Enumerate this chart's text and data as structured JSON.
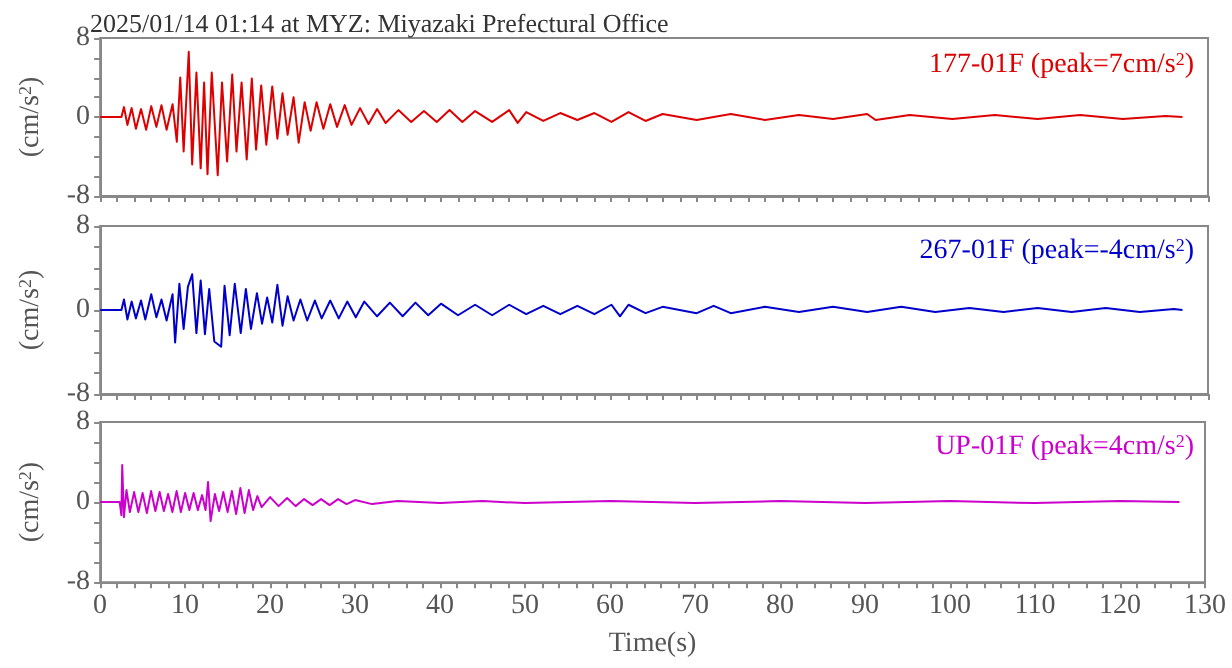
{
  "chart_data": [
    {
      "type": "line",
      "title": "2025/01/14 01:14 at MYZ: Miyazaki Prefectural Office",
      "ylabel": "(cm/s$^{2}$)",
      "tick_labels": "y",
      "legend": false,
      "marker": "none",
      "line_style": "solid",
      "grid": false,
      "xlim": [
        0,
        130
      ],
      "xticks": [
        0,
        {
          "value": 2,
          "label": null
        },
        {
          "value": 4,
          "label": null
        },
        {
          "value": 6,
          "label": null
        },
        {
          "value": 8,
          "label": null
        },
        10,
        {
          "value": 12,
          "label": null
        },
        {
          "value": 14,
          "label": null
        },
        {
          "value": 16,
          "label": null
        },
        {
          "value": 18,
          "label": null
        },
        20,
        {
          "value": 22,
          "label": null
        },
        {
          "value": 24,
          "label": null
        },
        {
          "value": 26,
          "label": null
        },
        {
          "value": 28,
          "label": null
        },
        30,
        {
          "value": 32,
          "label": null
        },
        {
          "value": 34,
          "label": null
        },
        {
          "value": 36,
          "label": null
        },
        {
          "value": 38,
          "label": null
        },
        40,
        {
          "value": 42,
          "label": null
        },
        {
          "value": 44,
          "label": null
        },
        {
          "value": 46,
          "label": null
        },
        {
          "value": 48,
          "label": null
        },
        50,
        {
          "value": 52,
          "label": null
        },
        {
          "value": 54,
          "label": null
        },
        {
          "value": 56,
          "label": null
        },
        {
          "value": 58,
          "label": null
        },
        60,
        {
          "value": 62,
          "label": null
        },
        {
          "value": 64,
          "label": null
        },
        {
          "value": 66,
          "label": null
        },
        {
          "value": 68,
          "label": null
        },
        70,
        {
          "value": 72,
          "label": null
        },
        {
          "value": 74,
          "label": null
        },
        {
          "value": 76,
          "label": null
        },
        {
          "value": 78,
          "label": null
        },
        80,
        {
          "value": 82,
          "label": null
        },
        {
          "value": 84,
          "label": null
        },
        {
          "value": 86,
          "label": null
        },
        {
          "value": 88,
          "label": null
        },
        90,
        {
          "value": 92,
          "label": null
        },
        {
          "value": 94,
          "label": null
        },
        {
          "value": 96,
          "label": null
        },
        {
          "value": 98,
          "label": null
        },
        100,
        {
          "value": 102,
          "label": null
        },
        {
          "value": 104,
          "label": null
        },
        {
          "value": 106,
          "label": null
        },
        {
          "value": 108,
          "label": null
        },
        110,
        {
          "value": 112,
          "label": null
        },
        {
          "value": 114,
          "label": null
        },
        {
          "value": 116,
          "label": null
        },
        {
          "value": 118,
          "label": null
        },
        120,
        {
          "value": 122,
          "label": null
        },
        {
          "value": 124,
          "label": null
        },
        {
          "value": 126,
          "label": null
        },
        {
          "value": 128,
          "label": null
        },
        130
      ],
      "ylim": [
        -8,
        8
      ],
      "yticks": [
        -8,
        {
          "value": -6,
          "label": null
        },
        {
          "value": -4,
          "label": null
        },
        {
          "value": -2,
          "label": null
        },
        0,
        {
          "value": 2,
          "label": null
        },
        {
          "value": 4,
          "label": null
        },
        {
          "value": 6,
          "label": null
        },
        8
      ],
      "series": [
        {
          "name": "177-01F (peak=7cm/s$^{2}$)",
          "color": "#dd0000",
          "x": [
            0,
            2.5,
            2.8,
            3.2,
            3.7,
            4.2,
            4.8,
            5.4,
            6,
            6.6,
            7.2,
            7.8,
            8.5,
            9.0,
            9.4,
            9.8,
            10.4,
            10.8,
            11.3,
            11.8,
            12.2,
            12.6,
            13.1,
            13.8,
            14.3,
            14.9,
            15.5,
            16,
            16.6,
            17.2,
            17.8,
            18.3,
            18.9,
            19.5,
            20.2,
            20.8,
            21.4,
            22,
            22.7,
            23.3,
            24,
            24.7,
            25.4,
            26.2,
            27,
            27.8,
            28.7,
            29.5,
            30.5,
            31.5,
            32.5,
            33.5,
            35,
            36.5,
            38,
            39.5,
            41,
            42.5,
            44,
            46,
            48,
            49,
            50,
            52,
            54,
            56,
            58,
            60,
            62,
            64,
            66,
            70,
            74,
            78,
            82,
            86,
            90,
            91,
            95,
            100,
            105,
            110,
            115,
            120,
            125,
            127
          ],
          "values": [
            0,
            0,
            1,
            -0.8,
            0.9,
            -1.2,
            0.8,
            -1.3,
            1.1,
            -1,
            1.2,
            -1.3,
            1.3,
            -2.5,
            4,
            -3.5,
            6.6,
            -4.8,
            4.5,
            -5.2,
            3.5,
            -5.8,
            4.5,
            -5.9,
            3.5,
            -4.5,
            4.3,
            -3.5,
            3.5,
            -4.3,
            3.9,
            -3.3,
            3.2,
            -2.8,
            3.1,
            -2.2,
            2.4,
            -1.8,
            2,
            -2.6,
            1.5,
            -1.4,
            1.5,
            -1.2,
            1.3,
            -1,
            1.2,
            -0.8,
            0.9,
            -0.7,
            0.8,
            -0.6,
            0.7,
            -0.5,
            0.6,
            -0.5,
            0.7,
            -0.5,
            0.6,
            -0.5,
            0.7,
            -0.6,
            0.5,
            -0.4,
            0.4,
            -0.3,
            0.4,
            -0.5,
            0.5,
            -0.4,
            0.3,
            -0.3,
            0.3,
            -0.3,
            0.2,
            -0.2,
            0.3,
            -0.3,
            0.2,
            -0.2,
            0.2,
            -0.2,
            0.2,
            -0.2,
            0.1,
            0
          ]
        }
      ]
    },
    {
      "type": "line",
      "ylabel": "(cm/s$^{2}$)",
      "tick_labels": "y",
      "legend": false,
      "marker": "none",
      "line_style": "solid",
      "grid": false,
      "xlim": [
        0,
        130
      ],
      "xticks": [
        0,
        {
          "value": 2,
          "label": null
        },
        {
          "value": 4,
          "label": null
        },
        {
          "value": 6,
          "label": null
        },
        {
          "value": 8,
          "label": null
        },
        10,
        {
          "value": 12,
          "label": null
        },
        {
          "value": 14,
          "label": null
        },
        {
          "value": 16,
          "label": null
        },
        {
          "value": 18,
          "label": null
        },
        20,
        {
          "value": 22,
          "label": null
        },
        {
          "value": 24,
          "label": null
        },
        {
          "value": 26,
          "label": null
        },
        {
          "value": 28,
          "label": null
        },
        30,
        {
          "value": 32,
          "label": null
        },
        {
          "value": 34,
          "label": null
        },
        {
          "value": 36,
          "label": null
        },
        {
          "value": 38,
          "label": null
        },
        40,
        {
          "value": 42,
          "label": null
        },
        {
          "value": 44,
          "label": null
        },
        {
          "value": 46,
          "label": null
        },
        {
          "value": 48,
          "label": null
        },
        50,
        {
          "value": 52,
          "label": null
        },
        {
          "value": 54,
          "label": null
        },
        {
          "value": 56,
          "label": null
        },
        {
          "value": 58,
          "label": null
        },
        60,
        {
          "value": 62,
          "label": null
        },
        {
          "value": 64,
          "label": null
        },
        {
          "value": 66,
          "label": null
        },
        {
          "value": 68,
          "label": null
        },
        70,
        {
          "value": 72,
          "label": null
        },
        {
          "value": 74,
          "label": null
        },
        {
          "value": 76,
          "label": null
        },
        {
          "value": 78,
          "label": null
        },
        80,
        {
          "value": 82,
          "label": null
        },
        {
          "value": 84,
          "label": null
        },
        {
          "value": 86,
          "label": null
        },
        {
          "value": 88,
          "label": null
        },
        90,
        {
          "value": 92,
          "label": null
        },
        {
          "value": 94,
          "label": null
        },
        {
          "value": 96,
          "label": null
        },
        {
          "value": 98,
          "label": null
        },
        100,
        {
          "value": 102,
          "label": null
        },
        {
          "value": 104,
          "label": null
        },
        {
          "value": 106,
          "label": null
        },
        {
          "value": 108,
          "label": null
        },
        110,
        {
          "value": 112,
          "label": null
        },
        {
          "value": 114,
          "label": null
        },
        {
          "value": 116,
          "label": null
        },
        {
          "value": 118,
          "label": null
        },
        120,
        {
          "value": 122,
          "label": null
        },
        {
          "value": 124,
          "label": null
        },
        {
          "value": 126,
          "label": null
        },
        {
          "value": 128,
          "label": null
        },
        130
      ],
      "ylim": [
        -8,
        8
      ],
      "yticks": [
        -8,
        {
          "value": -6,
          "label": null
        },
        {
          "value": -4,
          "label": null
        },
        {
          "value": -2,
          "label": null
        },
        0,
        {
          "value": 2,
          "label": null
        },
        {
          "value": 4,
          "label": null
        },
        {
          "value": 6,
          "label": null
        },
        8
      ],
      "series": [
        {
          "name": "267-01F (peak=-4cm/s$^{2}$)",
          "color": "#0000cc",
          "x": [
            0,
            2.5,
            2.8,
            3.2,
            3.7,
            4.2,
            4.8,
            5.3,
            6,
            6.6,
            7.2,
            7.8,
            8.5,
            8.8,
            9.3,
            9.8,
            10.3,
            10.8,
            11.3,
            11.8,
            12.3,
            12.8,
            13.4,
            14.2,
            14.6,
            15.2,
            15.8,
            16.5,
            17.1,
            17.7,
            18.4,
            19,
            19.6,
            20.2,
            20.8,
            21.4,
            22,
            22.7,
            23.5,
            24.3,
            25.2,
            26,
            27,
            28,
            29,
            30,
            31,
            32.5,
            34,
            35.5,
            37,
            38.5,
            40,
            42,
            44,
            46,
            48,
            50,
            52,
            54,
            56,
            58,
            60,
            61,
            62,
            64,
            66,
            70,
            72,
            74,
            78,
            82,
            86,
            90,
            94,
            98,
            102,
            106,
            110,
            114,
            118,
            122,
            126,
            127
          ],
          "values": [
            0,
            0,
            1,
            -0.9,
            0.8,
            -0.8,
            0.9,
            -0.9,
            1.5,
            -0.7,
            1,
            -1,
            1.5,
            -3.1,
            2.5,
            -1.8,
            2.2,
            3.4,
            -2.2,
            2.8,
            -2.3,
            2,
            -3,
            -3.5,
            2.3,
            -2.4,
            2.5,
            -2.2,
            2,
            -1.8,
            1.6,
            -1.3,
            1.2,
            -1.2,
            2.4,
            -1.5,
            1.3,
            -1,
            1,
            -1,
            0.9,
            -0.8,
            0.9,
            -0.8,
            0.8,
            -0.7,
            0.8,
            -0.6,
            0.7,
            -0.6,
            0.7,
            -0.5,
            0.6,
            -0.5,
            0.5,
            -0.5,
            0.5,
            -0.4,
            0.4,
            -0.4,
            0.4,
            -0.4,
            0.5,
            -0.6,
            0.5,
            -0.3,
            0.3,
            -0.3,
            0.4,
            -0.3,
            0.3,
            -0.2,
            0.3,
            -0.2,
            0.3,
            -0.2,
            0.2,
            -0.2,
            0.2,
            -0.2,
            0.2,
            -0.2,
            0.1,
            0
          ]
        }
      ]
    },
    {
      "type": "line",
      "ylabel": "(cm/s$^{2}$)",
      "xlabel": "Time(s)",
      "legend": false,
      "marker": "none",
      "line_style": "solid",
      "grid": false,
      "xlim": [
        0,
        130
      ],
      "xticks": [
        0,
        {
          "value": 2,
          "label": null
        },
        {
          "value": 4,
          "label": null
        },
        {
          "value": 6,
          "label": null
        },
        {
          "value": 8,
          "label": null
        },
        10,
        {
          "value": 12,
          "label": null
        },
        {
          "value": 14,
          "label": null
        },
        {
          "value": 16,
          "label": null
        },
        {
          "value": 18,
          "label": null
        },
        20,
        {
          "value": 22,
          "label": null
        },
        {
          "value": 24,
          "label": null
        },
        {
          "value": 26,
          "label": null
        },
        {
          "value": 28,
          "label": null
        },
        30,
        {
          "value": 32,
          "label": null
        },
        {
          "value": 34,
          "label": null
        },
        {
          "value": 36,
          "label": null
        },
        {
          "value": 38,
          "label": null
        },
        40,
        {
          "value": 42,
          "label": null
        },
        {
          "value": 44,
          "label": null
        },
        {
          "value": 46,
          "label": null
        },
        {
          "value": 48,
          "label": null
        },
        50,
        {
          "value": 52,
          "label": null
        },
        {
          "value": 54,
          "label": null
        },
        {
          "value": 56,
          "label": null
        },
        {
          "value": 58,
          "label": null
        },
        60,
        {
          "value": 62,
          "label": null
        },
        {
          "value": 64,
          "label": null
        },
        {
          "value": 66,
          "label": null
        },
        {
          "value": 68,
          "label": null
        },
        70,
        {
          "value": 72,
          "label": null
        },
        {
          "value": 74,
          "label": null
        },
        {
          "value": 76,
          "label": null
        },
        {
          "value": 78,
          "label": null
        },
        80,
        {
          "value": 82,
          "label": null
        },
        {
          "value": 84,
          "label": null
        },
        {
          "value": 86,
          "label": null
        },
        {
          "value": 88,
          "label": null
        },
        90,
        {
          "value": 92,
          "label": null
        },
        {
          "value": 94,
          "label": null
        },
        {
          "value": 96,
          "label": null
        },
        {
          "value": 98,
          "label": null
        },
        100,
        {
          "value": 102,
          "label": null
        },
        {
          "value": 104,
          "label": null
        },
        {
          "value": 106,
          "label": null
        },
        {
          "value": 108,
          "label": null
        },
        110,
        {
          "value": 112,
          "label": null
        },
        {
          "value": 114,
          "label": null
        },
        {
          "value": 116,
          "label": null
        },
        {
          "value": 118,
          "label": null
        },
        120,
        {
          "value": 122,
          "label": null
        },
        {
          "value": 124,
          "label": null
        },
        {
          "value": 126,
          "label": null
        },
        {
          "value": 128,
          "label": null
        },
        130
      ],
      "ylim": [
        -8,
        8
      ],
      "yticks": [
        -8,
        {
          "value": -6,
          "label": null
        },
        {
          "value": -4,
          "label": null
        },
        {
          "value": -2,
          "label": null
        },
        0,
        {
          "value": 2,
          "label": null
        },
        {
          "value": 4,
          "label": null
        },
        {
          "value": 6,
          "label": null
        },
        8
      ],
      "series": [
        {
          "name": "UP-01F (peak=4cm/s$^{2}$)",
          "color": "#cc00cc",
          "x": [
            0,
            2.3,
            2.5,
            2.6,
            2.8,
            3.1,
            3.5,
            4,
            4.5,
            5,
            5.5,
            6,
            6.5,
            7,
            7.5,
            8,
            8.5,
            9,
            9.5,
            10,
            10.5,
            11,
            11.5,
            12,
            12.4,
            12.7,
            13,
            13.5,
            14,
            14.5,
            15,
            15.5,
            16,
            16.5,
            17,
            17.5,
            18,
            18.5,
            19,
            20,
            21,
            22,
            23,
            24,
            25,
            26,
            27,
            28,
            29,
            30,
            32,
            35,
            40,
            45,
            50,
            60,
            70,
            80,
            90,
            100,
            110,
            120,
            127
          ],
          "values": [
            0,
            0,
            -1.3,
            3.7,
            -1.5,
            1.2,
            -1,
            1,
            -1,
            0.9,
            -1.1,
            1.1,
            -0.9,
            1,
            -0.9,
            0.8,
            -1,
            1.1,
            -1,
            0.9,
            -0.8,
            0.9,
            -0.8,
            0.7,
            -0.8,
            2,
            -1.9,
            0.8,
            -0.9,
            1,
            -1,
            1.1,
            -1.2,
            1.4,
            -1.1,
            1.2,
            -0.8,
            0.6,
            -0.5,
            0.5,
            -0.4,
            0.4,
            -0.4,
            0.3,
            -0.3,
            0.3,
            -0.3,
            0.3,
            -0.2,
            0.2,
            -0.2,
            0.1,
            -0.1,
            0.1,
            -0.1,
            0.1,
            -0.1,
            0.1,
            -0.1,
            0.1,
            -0.1,
            0.1,
            0
          ]
        }
      ]
    }
  ]
}
